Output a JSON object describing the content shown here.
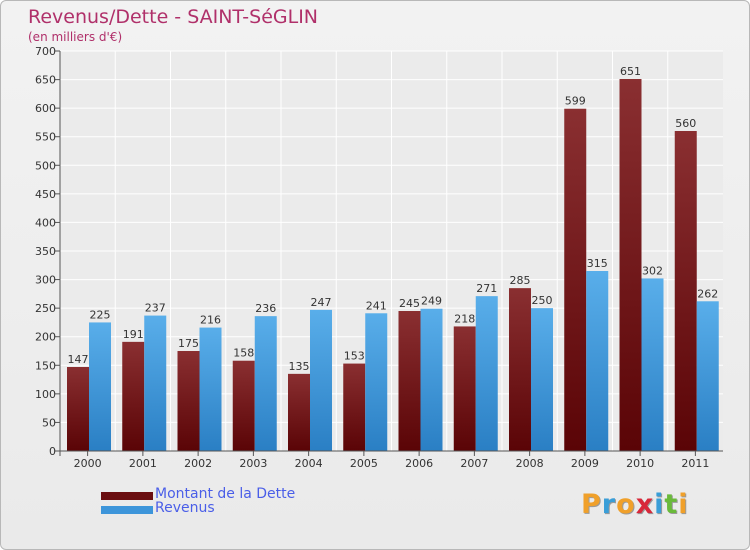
{
  "header": {
    "title": "Revenus/Dette - SAINT-SéGLIN",
    "subtitle": "(en milliers d'€)"
  },
  "legend": {
    "items": [
      {
        "label": "Montant de la Dette",
        "color": "#6b0e10"
      },
      {
        "label": "Revenus",
        "color": "#3d95da"
      }
    ]
  },
  "logo": {
    "text": "Proxiti",
    "letters": [
      {
        "ch": "P",
        "color": "#f0a02a"
      },
      {
        "ch": "r",
        "color": "#3a9ed8"
      },
      {
        "ch": "o",
        "color": "#f0a02a"
      },
      {
        "ch": "x",
        "color": "#d8283a"
      },
      {
        "ch": "i",
        "color": "#3a9ed8"
      },
      {
        "ch": "t",
        "color": "#6aba3a"
      },
      {
        "ch": "i",
        "color": "#f0a02a"
      }
    ]
  },
  "chart_data": {
    "type": "bar",
    "categories": [
      "2000",
      "2001",
      "2002",
      "2003",
      "2004",
      "2005",
      "2006",
      "2007",
      "2008",
      "2009",
      "2010",
      "2011"
    ],
    "series": [
      {
        "name": "Montant de la Dette",
        "color": "#6b0e10",
        "values": [
          147,
          191,
          175,
          158,
          135,
          153,
          245,
          218,
          285,
          599,
          651,
          560
        ]
      },
      {
        "name": "Revenus",
        "color": "#3d95da",
        "values": [
          225,
          237,
          216,
          236,
          247,
          241,
          249,
          271,
          250,
          315,
          302,
          262
        ]
      }
    ],
    "yticks": [
      0,
      50,
      100,
      150,
      200,
      250,
      300,
      350,
      400,
      450,
      500,
      550,
      600,
      650,
      700
    ],
    "ylim": [
      0,
      700
    ],
    "grid": true
  }
}
